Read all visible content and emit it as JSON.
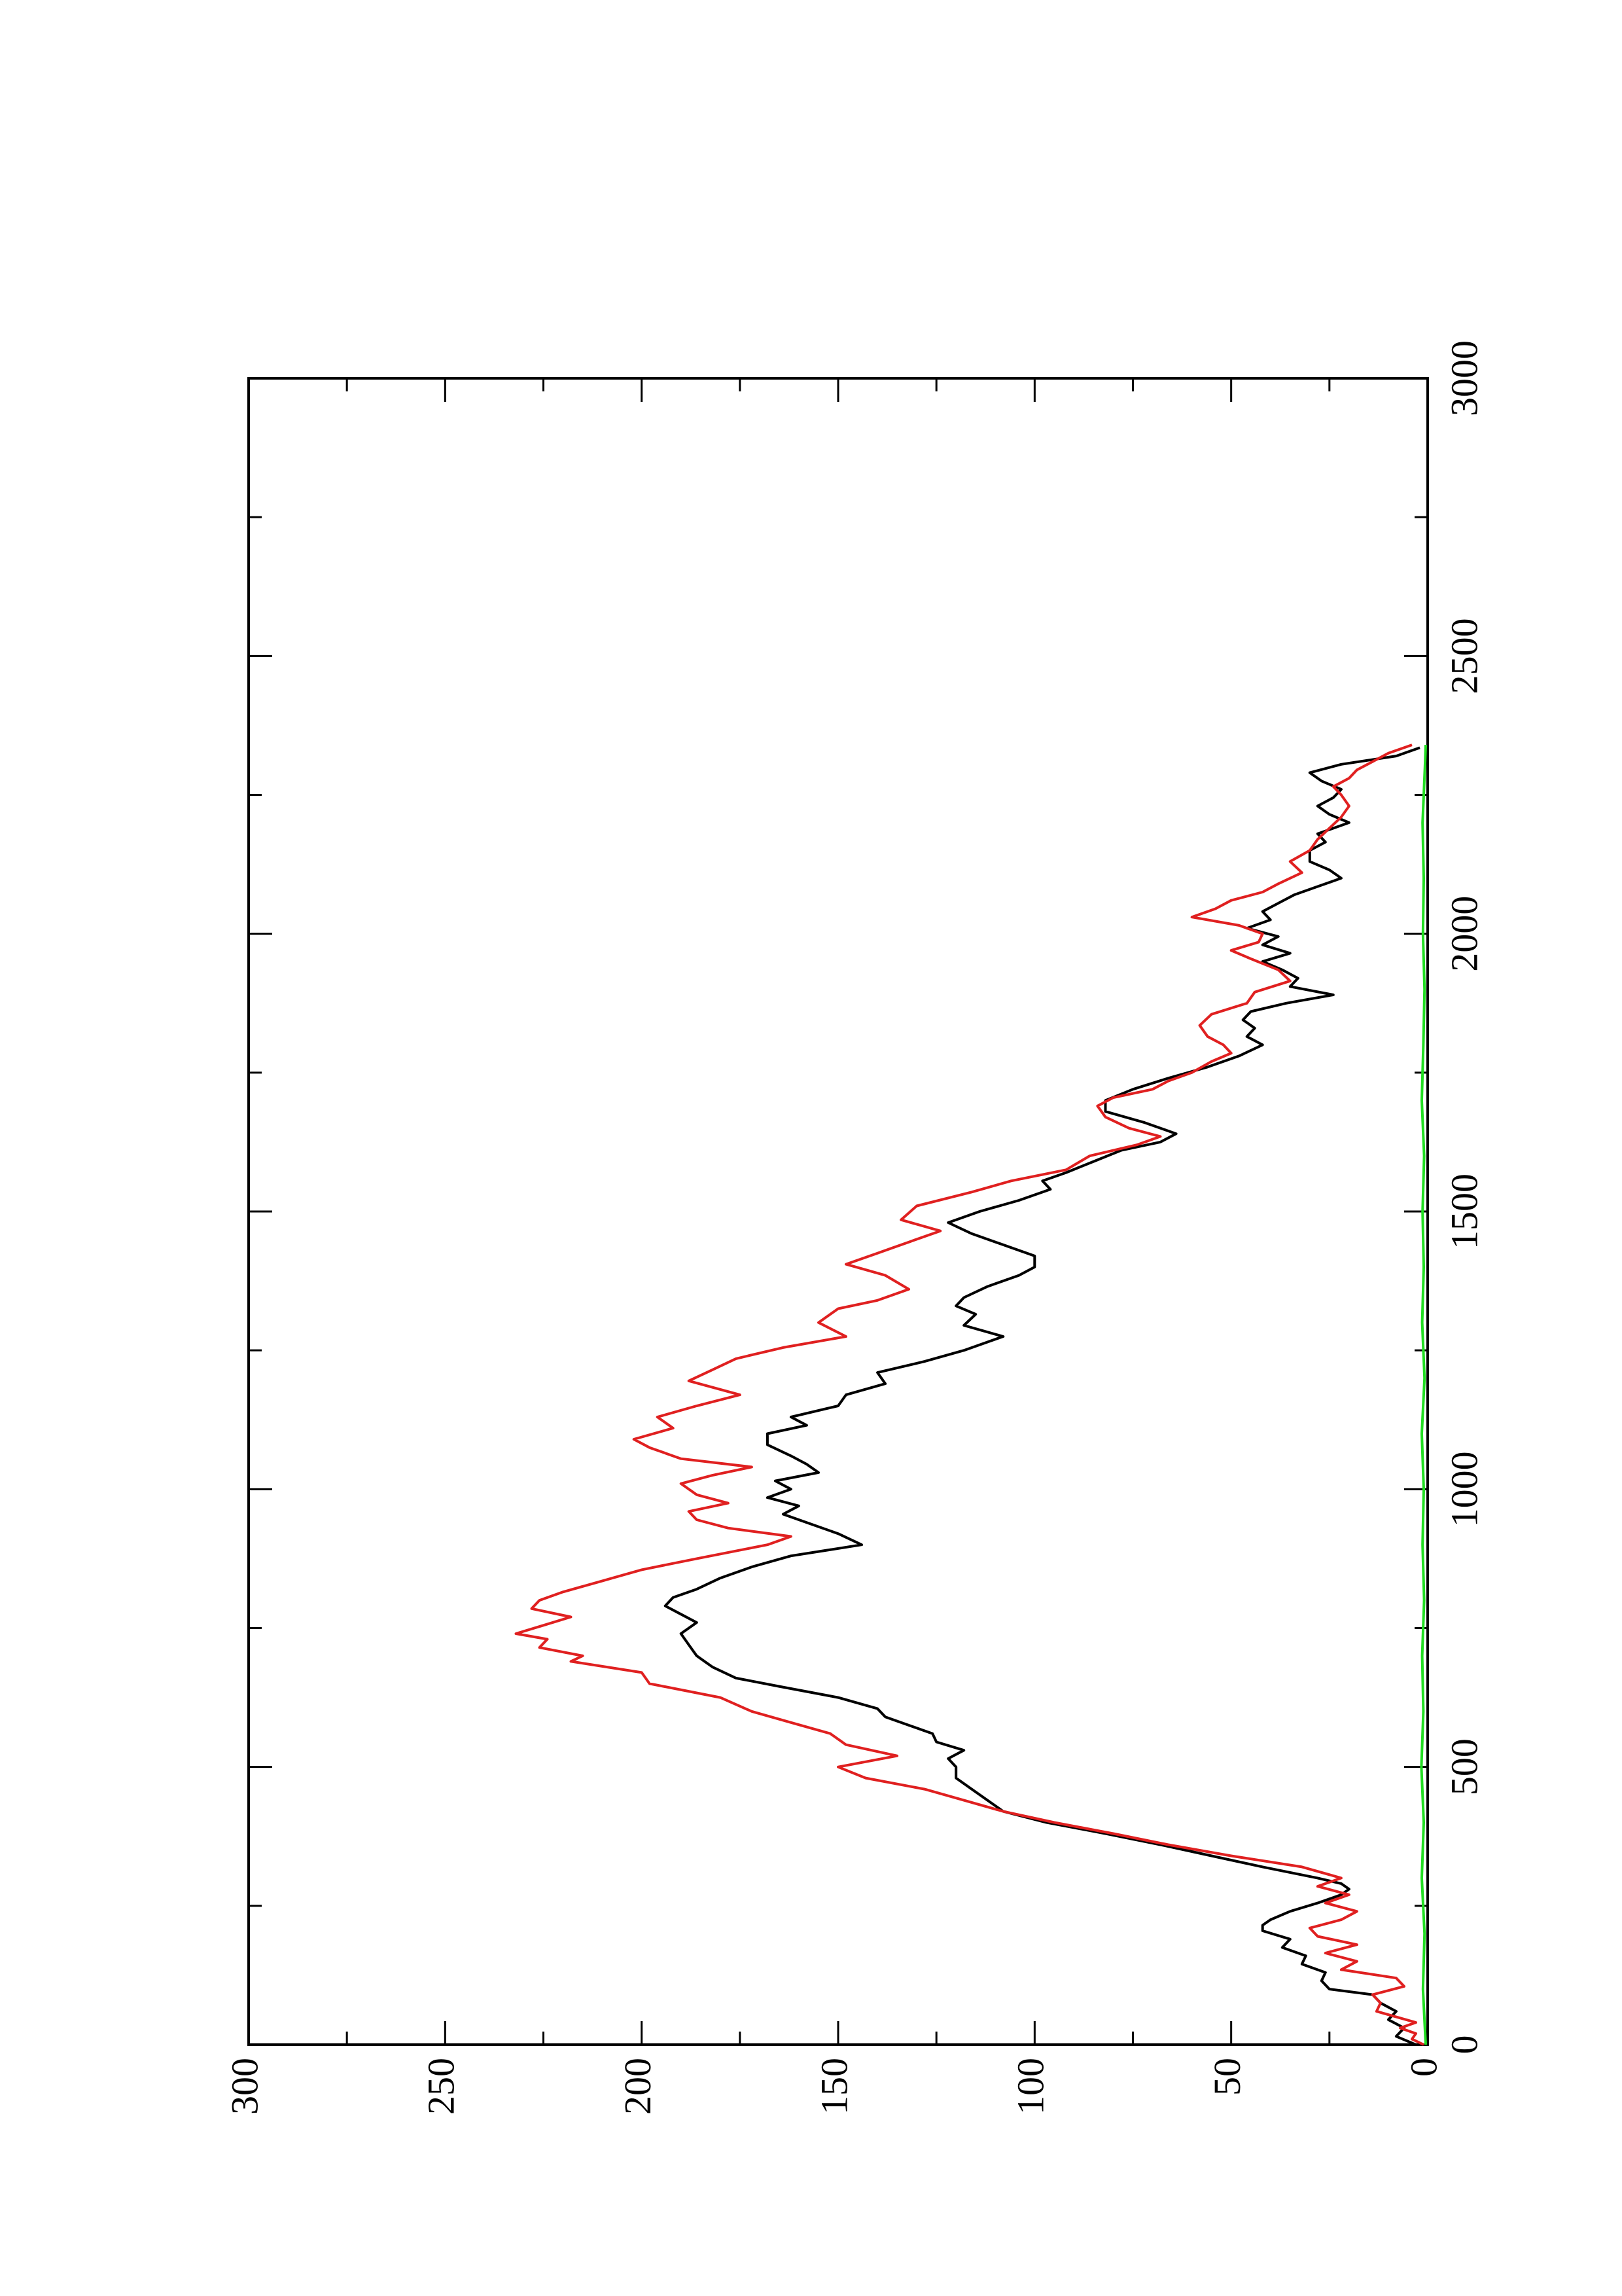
{
  "chart_data": {
    "type": "line",
    "orientation": "rotated-90-ccw",
    "title": "",
    "xlabel": "",
    "ylabel": "",
    "xlim": [
      0,
      3000
    ],
    "ylim": [
      0,
      300
    ],
    "x_ticks": [
      0,
      500,
      1000,
      1500,
      2000,
      2500,
      3000
    ],
    "y_ticks": [
      0,
      50,
      100,
      150,
      200,
      250,
      300
    ],
    "x_tick_labels": [
      "0",
      "500",
      "1000",
      "1500",
      "2000",
      "2500",
      "3000"
    ],
    "y_tick_labels": [
      "0",
      "50",
      "100",
      "150",
      "200",
      "250",
      "300"
    ],
    "grid": false,
    "legend": "none",
    "series": [
      {
        "color": "#000000",
        "points": [
          [
            0,
            3
          ],
          [
            15,
            8
          ],
          [
            30,
            6
          ],
          [
            45,
            10
          ],
          [
            60,
            8
          ],
          [
            75,
            12
          ],
          [
            90,
            14
          ],
          [
            100,
            25
          ],
          [
            115,
            27
          ],
          [
            130,
            26
          ],
          [
            145,
            32
          ],
          [
            160,
            31
          ],
          [
            175,
            37
          ],
          [
            190,
            35
          ],
          [
            205,
            42
          ],
          [
            215,
            42
          ],
          [
            225,
            40
          ],
          [
            240,
            35
          ],
          [
            255,
            28
          ],
          [
            270,
            22
          ],
          [
            280,
            20
          ],
          [
            290,
            22
          ],
          [
            300,
            28
          ],
          [
            320,
            42
          ],
          [
            340,
            55
          ],
          [
            360,
            68
          ],
          [
            380,
            82
          ],
          [
            400,
            97
          ],
          [
            420,
            108
          ],
          [
            440,
            112
          ],
          [
            460,
            116
          ],
          [
            480,
            120
          ],
          [
            500,
            120
          ],
          [
            515,
            122
          ],
          [
            530,
            118
          ],
          [
            545,
            125
          ],
          [
            560,
            126
          ],
          [
            575,
            132
          ],
          [
            590,
            138
          ],
          [
            605,
            140
          ],
          [
            625,
            150
          ],
          [
            645,
            165
          ],
          [
            660,
            176
          ],
          [
            680,
            182
          ],
          [
            700,
            186
          ],
          [
            720,
            188
          ],
          [
            740,
            190
          ],
          [
            760,
            186
          ],
          [
            775,
            190
          ],
          [
            790,
            194
          ],
          [
            805,
            192
          ],
          [
            820,
            186
          ],
          [
            840,
            180
          ],
          [
            860,
            172
          ],
          [
            880,
            162
          ],
          [
            900,
            144
          ],
          [
            920,
            150
          ],
          [
            940,
            158
          ],
          [
            955,
            164
          ],
          [
            970,
            160
          ],
          [
            985,
            168
          ],
          [
            1000,
            162
          ],
          [
            1015,
            166
          ],
          [
            1030,
            155
          ],
          [
            1045,
            158
          ],
          [
            1060,
            162
          ],
          [
            1080,
            168
          ],
          [
            1100,
            168
          ],
          [
            1115,
            158
          ],
          [
            1130,
            162
          ],
          [
            1150,
            150
          ],
          [
            1170,
            148
          ],
          [
            1190,
            138
          ],
          [
            1210,
            140
          ],
          [
            1230,
            128
          ],
          [
            1250,
            118
          ],
          [
            1275,
            108
          ],
          [
            1295,
            118
          ],
          [
            1315,
            115
          ],
          [
            1330,
            120
          ],
          [
            1345,
            118
          ],
          [
            1365,
            112
          ],
          [
            1385,
            104
          ],
          [
            1400,
            100
          ],
          [
            1420,
            100
          ],
          [
            1440,
            108
          ],
          [
            1460,
            116
          ],
          [
            1480,
            122
          ],
          [
            1500,
            114
          ],
          [
            1520,
            104
          ],
          [
            1540,
            96
          ],
          [
            1555,
            98
          ],
          [
            1570,
            92
          ],
          [
            1590,
            85
          ],
          [
            1610,
            78
          ],
          [
            1625,
            68
          ],
          [
            1640,
            64
          ],
          [
            1660,
            72
          ],
          [
            1680,
            82
          ],
          [
            1700,
            82
          ],
          [
            1720,
            75
          ],
          [
            1740,
            66
          ],
          [
            1760,
            56
          ],
          [
            1780,
            48
          ],
          [
            1800,
            42
          ],
          [
            1815,
            46
          ],
          [
            1830,
            44
          ],
          [
            1845,
            47
          ],
          [
            1860,
            45
          ],
          [
            1875,
            36
          ],
          [
            1890,
            24
          ],
          [
            1905,
            35
          ],
          [
            1920,
            33
          ],
          [
            1935,
            37
          ],
          [
            1950,
            42
          ],
          [
            1965,
            35
          ],
          [
            1980,
            42
          ],
          [
            1995,
            38
          ],
          [
            2010,
            46
          ],
          [
            2025,
            40
          ],
          [
            2040,
            42
          ],
          [
            2055,
            38
          ],
          [
            2070,
            34
          ],
          [
            2085,
            28
          ],
          [
            2100,
            22
          ],
          [
            2115,
            25
          ],
          [
            2130,
            30
          ],
          [
            2150,
            30
          ],
          [
            2165,
            26
          ],
          [
            2180,
            28
          ],
          [
            2200,
            20
          ],
          [
            2215,
            25
          ],
          [
            2230,
            28
          ],
          [
            2245,
            24
          ],
          [
            2260,
            22
          ],
          [
            2275,
            27
          ],
          [
            2290,
            30
          ],
          [
            2305,
            22
          ],
          [
            2320,
            8
          ],
          [
            2335,
            2
          ]
        ]
      },
      {
        "color": "#e02020",
        "points": [
          [
            0,
            1
          ],
          [
            10,
            4
          ],
          [
            20,
            3
          ],
          [
            30,
            7
          ],
          [
            40,
            3
          ],
          [
            50,
            8
          ],
          [
            60,
            13
          ],
          [
            75,
            12
          ],
          [
            90,
            14
          ],
          [
            105,
            6
          ],
          [
            120,
            8
          ],
          [
            135,
            22
          ],
          [
            150,
            18
          ],
          [
            165,
            26
          ],
          [
            180,
            18
          ],
          [
            195,
            28
          ],
          [
            210,
            30
          ],
          [
            225,
            22
          ],
          [
            240,
            18
          ],
          [
            255,
            26
          ],
          [
            270,
            20
          ],
          [
            285,
            28
          ],
          [
            300,
            22
          ],
          [
            320,
            32
          ],
          [
            340,
            50
          ],
          [
            360,
            66
          ],
          [
            380,
            80
          ],
          [
            400,
            95
          ],
          [
            420,
            108
          ],
          [
            440,
            118
          ],
          [
            460,
            128
          ],
          [
            480,
            143
          ],
          [
            500,
            150
          ],
          [
            520,
            135
          ],
          [
            540,
            148
          ],
          [
            560,
            152
          ],
          [
            580,
            162
          ],
          [
            600,
            172
          ],
          [
            625,
            180
          ],
          [
            650,
            198
          ],
          [
            670,
            200
          ],
          [
            690,
            218
          ],
          [
            700,
            215
          ],
          [
            715,
            226
          ],
          [
            730,
            224
          ],
          [
            740,
            232
          ],
          [
            755,
            225
          ],
          [
            770,
            218
          ],
          [
            785,
            228
          ],
          [
            800,
            226
          ],
          [
            815,
            220
          ],
          [
            835,
            210
          ],
          [
            855,
            200
          ],
          [
            875,
            186
          ],
          [
            900,
            168
          ],
          [
            915,
            162
          ],
          [
            930,
            178
          ],
          [
            945,
            186
          ],
          [
            960,
            188
          ],
          [
            975,
            178
          ],
          [
            990,
            186
          ],
          [
            1010,
            190
          ],
          [
            1025,
            182
          ],
          [
            1040,
            172
          ],
          [
            1055,
            190
          ],
          [
            1075,
            198
          ],
          [
            1090,
            202
          ],
          [
            1110,
            192
          ],
          [
            1130,
            196
          ],
          [
            1150,
            186
          ],
          [
            1170,
            175
          ],
          [
            1195,
            188
          ],
          [
            1215,
            182
          ],
          [
            1235,
            176
          ],
          [
            1255,
            164
          ],
          [
            1275,
            148
          ],
          [
            1300,
            155
          ],
          [
            1325,
            150
          ],
          [
            1340,
            140
          ],
          [
            1360,
            132
          ],
          [
            1385,
            138
          ],
          [
            1405,
            148
          ],
          [
            1425,
            140
          ],
          [
            1445,
            132
          ],
          [
            1465,
            124
          ],
          [
            1485,
            134
          ],
          [
            1510,
            130
          ],
          [
            1535,
            116
          ],
          [
            1555,
            106
          ],
          [
            1575,
            92
          ],
          [
            1600,
            86
          ],
          [
            1620,
            74
          ],
          [
            1635,
            68
          ],
          [
            1650,
            76
          ],
          [
            1670,
            82
          ],
          [
            1690,
            84
          ],
          [
            1705,
            80
          ],
          [
            1720,
            70
          ],
          [
            1735,
            66
          ],
          [
            1750,
            60
          ],
          [
            1770,
            55
          ],
          [
            1785,
            50
          ],
          [
            1800,
            52
          ],
          [
            1815,
            56
          ],
          [
            1835,
            58
          ],
          [
            1855,
            55
          ],
          [
            1875,
            46
          ],
          [
            1895,
            44
          ],
          [
            1915,
            35
          ],
          [
            1935,
            38
          ],
          [
            1955,
            45
          ],
          [
            1970,
            50
          ],
          [
            1985,
            43
          ],
          [
            2000,
            42
          ],
          [
            2015,
            48
          ],
          [
            2030,
            60
          ],
          [
            2045,
            54
          ],
          [
            2060,
            50
          ],
          [
            2075,
            42
          ],
          [
            2090,
            38
          ],
          [
            2110,
            32
          ],
          [
            2130,
            35
          ],
          [
            2150,
            30
          ],
          [
            2170,
            28
          ],
          [
            2190,
            25
          ],
          [
            2210,
            22
          ],
          [
            2230,
            20
          ],
          [
            2250,
            22
          ],
          [
            2265,
            24
          ],
          [
            2280,
            20
          ],
          [
            2295,
            18
          ],
          [
            2310,
            14
          ],
          [
            2325,
            10
          ],
          [
            2340,
            4
          ]
        ]
      },
      {
        "color": "#22dd22",
        "points": [
          [
            0,
            0.5
          ],
          [
            100,
            1.2
          ],
          [
            200,
            0.8
          ],
          [
            300,
            1.5
          ],
          [
            400,
            1.0
          ],
          [
            500,
            1.6
          ],
          [
            600,
            1.1
          ],
          [
            700,
            1.4
          ],
          [
            800,
            0.9
          ],
          [
            900,
            1.3
          ],
          [
            1000,
            1.0
          ],
          [
            1100,
            1.5
          ],
          [
            1200,
            0.8
          ],
          [
            1300,
            1.4
          ],
          [
            1400,
            1.0
          ],
          [
            1500,
            1.3
          ],
          [
            1600,
            0.9
          ],
          [
            1700,
            1.5
          ],
          [
            1800,
            1.1
          ],
          [
            1900,
            0.8
          ],
          [
            2000,
            1.2
          ],
          [
            2100,
            1.0
          ],
          [
            2200,
            1.3
          ],
          [
            2300,
            0.7
          ],
          [
            2340,
            0.5
          ]
        ]
      }
    ]
  }
}
